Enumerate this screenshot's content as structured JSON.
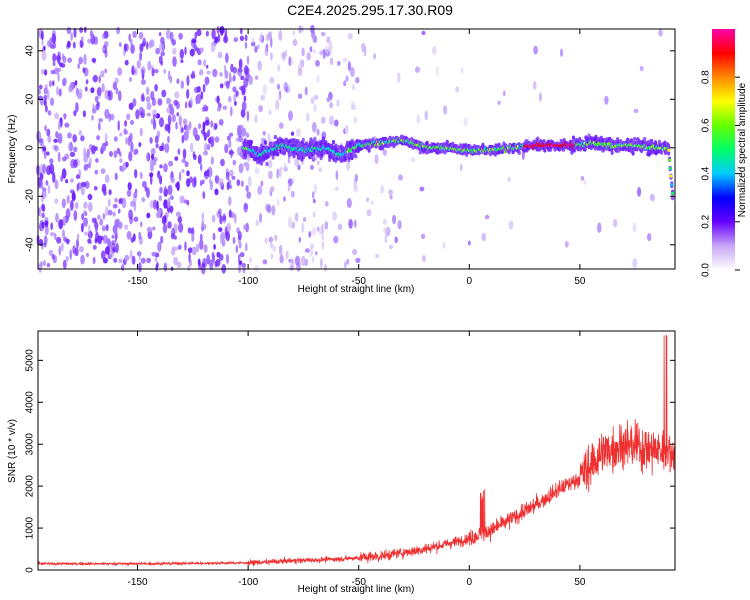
{
  "chart_data": [
    {
      "type": "heatmap",
      "title": "C2E4.2025.295.17.30.R09",
      "xlabel": "Height of straight line (km)",
      "ylabel": "Frequency (Hz)",
      "xlim": [
        -195,
        93
      ],
      "ylim": [
        -50,
        49
      ],
      "xticks": [
        -150,
        -100,
        -50,
        0,
        50
      ],
      "yticks": [
        -40,
        -20,
        0,
        20,
        40
      ],
      "ridge": {
        "description_x": [
          -100,
          -95,
          -85,
          -75,
          -65,
          -58,
          -50,
          -40,
          -30,
          -20,
          -10,
          0,
          10,
          20,
          30,
          40,
          48,
          55,
          65,
          75,
          85,
          90,
          92
        ],
        "description_freq": [
          0,
          -3,
          1,
          -1,
          0,
          -3,
          1,
          2,
          3,
          0,
          0,
          -1,
          -1,
          0,
          1,
          1,
          1,
          2,
          1,
          1,
          0,
          0,
          -20
        ]
      },
      "colorbar": {
        "label": "Normalized spectral amplitude",
        "range": [
          0,
          1
        ],
        "ticks": [
          0.0,
          0.2,
          0.4,
          0.6,
          0.8
        ],
        "tick_labels": [
          "0.0",
          "0.2",
          "0.4",
          "0.6",
          "0.8"
        ],
        "colors": [
          "#ffffff",
          "#c9a6f5",
          "#6600ff",
          "#0000ff",
          "#00ccff",
          "#00ff66",
          "#66ff00",
          "#ffff00",
          "#ff8800",
          "#ff0000",
          "#ff00aa"
        ]
      }
    },
    {
      "type": "line",
      "title": "",
      "xlabel": "Height of straight line (km)",
      "ylabel": "SNR (10 * v/v)",
      "xlim": [
        -195,
        93
      ],
      "ylim": [
        0,
        5700
      ],
      "xticks": [
        -150,
        -100,
        -50,
        0,
        50
      ],
      "yticks": [
        0,
        1000,
        2000,
        3000,
        4000,
        5000
      ],
      "series": [
        {
          "name": "SNR",
          "color": "#f03030",
          "trend_x": [
            -195,
            -150,
            -100,
            -80,
            -60,
            -40,
            -20,
            0,
            10,
            20,
            30,
            40,
            50,
            55,
            60,
            70,
            80,
            90,
            93
          ],
          "trend_y": [
            150,
            150,
            170,
            220,
            260,
            330,
            500,
            750,
            950,
            1250,
            1550,
            1900,
            2200,
            2500,
            2800,
            3000,
            2900,
            2800,
            2800
          ]
        }
      ]
    }
  ]
}
